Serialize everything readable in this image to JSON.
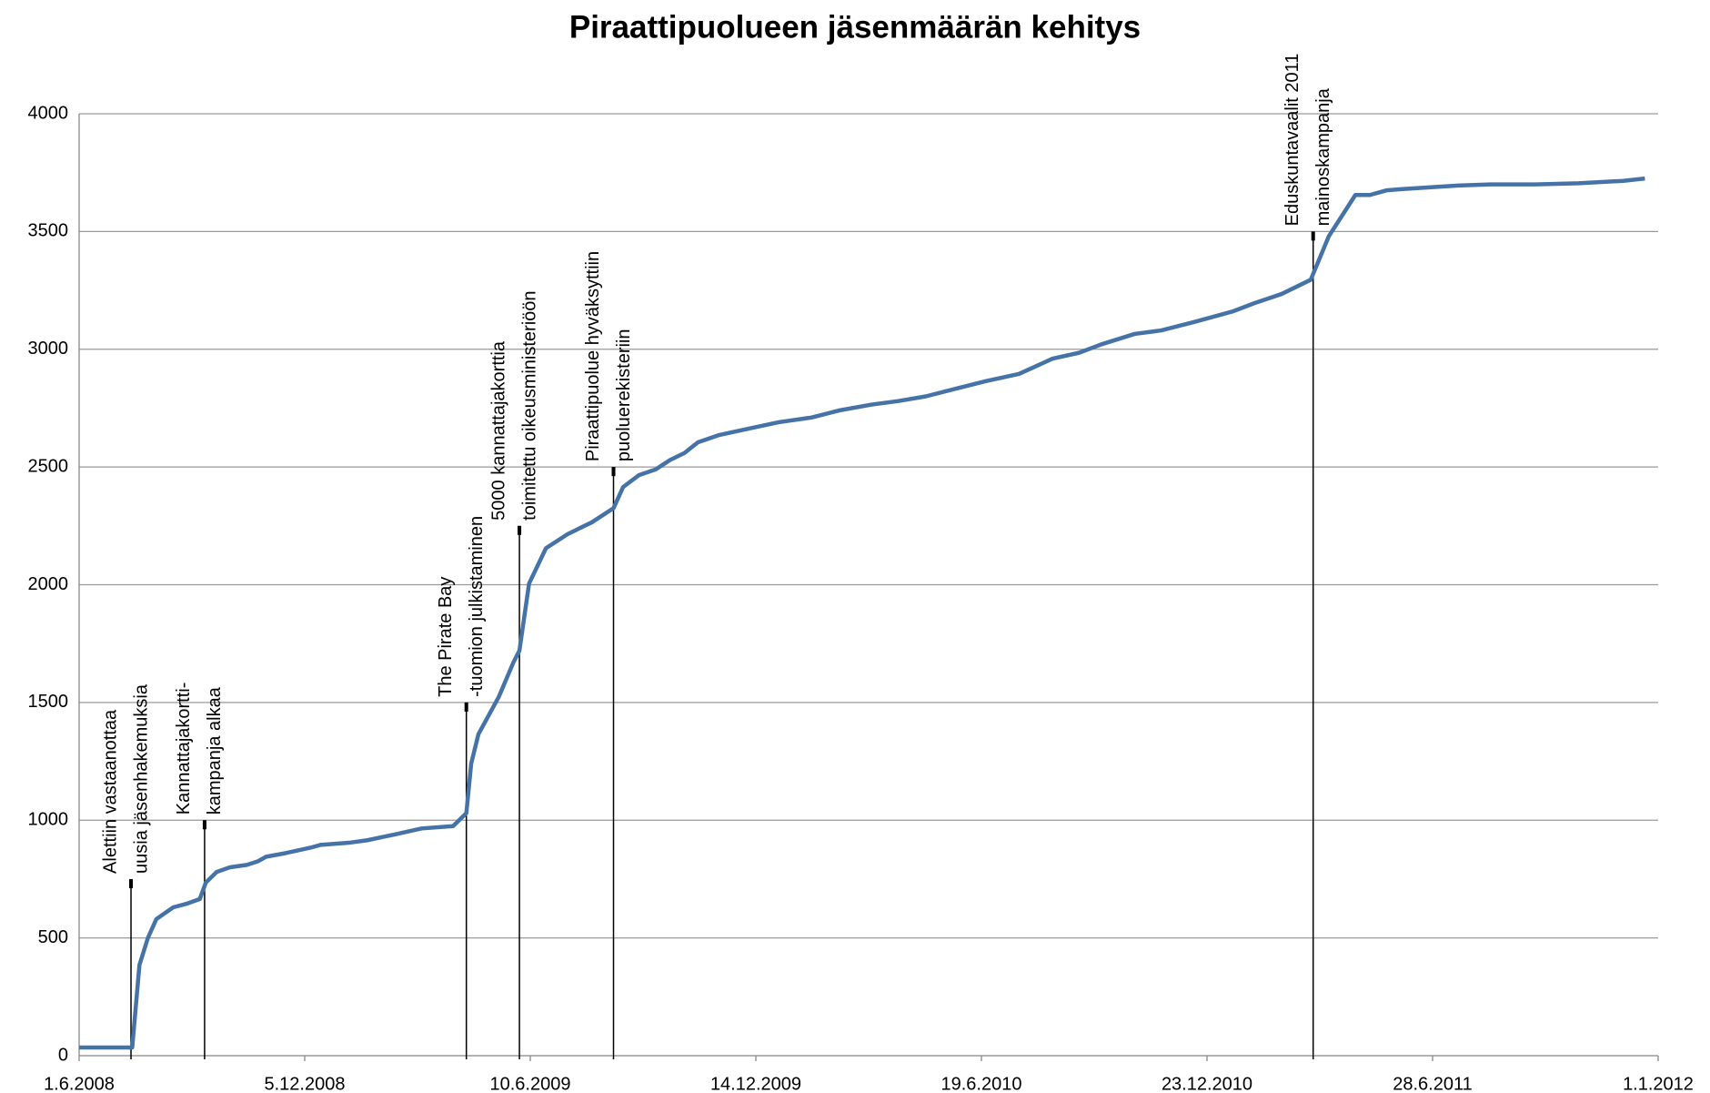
{
  "chart_data": {
    "type": "line",
    "title": "Piraattipuolueen jäsenmäärän kehitys",
    "x": [
      "2008-06-01",
      "2008-07-15",
      "2008-07-21",
      "2008-07-28",
      "2008-08-04",
      "2008-08-11",
      "2008-08-18",
      "2008-08-29",
      "2008-09-09",
      "2008-09-14",
      "2008-09-23",
      "2008-10-04",
      "2008-10-18",
      "2008-10-27",
      "2008-11-03",
      "2008-11-19",
      "2008-12-11",
      "2008-12-18",
      "2009-01-12",
      "2009-01-26",
      "2009-02-09",
      "2009-02-18",
      "2009-03-12",
      "2009-04-07",
      "2009-04-18",
      "2009-04-22",
      "2009-04-28",
      "2009-05-15",
      "2009-05-27",
      "2009-06-01",
      "2009-06-09",
      "2009-06-23",
      "2009-07-11",
      "2009-07-31",
      "2009-08-18",
      "2009-08-26",
      "2009-09-08",
      "2009-09-22",
      "2009-10-04",
      "2009-10-16",
      "2009-10-27",
      "2009-11-13",
      "2009-12-10",
      "2010-01-02",
      "2010-01-29",
      "2010-02-21",
      "2010-03-20",
      "2010-04-11",
      "2010-05-04",
      "2010-05-27",
      "2010-06-23",
      "2010-07-20",
      "2010-08-17",
      "2010-09-08",
      "2010-09-26",
      "2010-10-24",
      "2010-11-15",
      "2010-12-12",
      "2011-01-13",
      "2011-01-31",
      "2011-02-23",
      "2011-03-19",
      "2011-04-03",
      "2011-04-25",
      "2011-05-07",
      "2011-05-21",
      "2011-06-03",
      "2011-07-19",
      "2011-08-15",
      "2011-09-21",
      "2011-10-27",
      "2011-12-03",
      "2011-12-21"
    ],
    "series": [
      {
        "color": "#4573a7",
        "values": [
          35,
          35,
          385,
          500,
          580,
          605,
          630,
          645,
          665,
          735,
          780,
          800,
          810,
          825,
          845,
          860,
          885,
          895,
          905,
          915,
          930,
          940,
          965,
          975,
          1030,
          1240,
          1365,
          1525,
          1670,
          1720,
          2005,
          2155,
          2215,
          2265,
          2325,
          2415,
          2465,
          2490,
          2530,
          2560,
          2605,
          2635,
          2665,
          2690,
          2710,
          2740,
          2765,
          2780,
          2800,
          2830,
          2865,
          2895,
          2960,
          2985,
          3020,
          3065,
          3080,
          3115,
          3160,
          3195,
          3235,
          3295,
          3480,
          3655,
          3655,
          3675,
          3680,
          3695,
          3700,
          3700,
          3705,
          3715,
          3725
        ]
      }
    ],
    "xlim": [
      "2008-06-01",
      "2012-01-01"
    ],
    "xticks": [
      {
        "value": "2008-06-01",
        "label": "1.6.2008"
      },
      {
        "value": "2008-12-05",
        "label": "5.12.2008"
      },
      {
        "value": "2009-06-10",
        "label": "10.6.2009"
      },
      {
        "value": "2009-12-14",
        "label": "14.12.2009"
      },
      {
        "value": "2010-06-19",
        "label": "19.6.2010"
      },
      {
        "value": "2010-12-23",
        "label": "23.12.2010"
      },
      {
        "value": "2011-06-28",
        "label": "28.6.2011"
      },
      {
        "value": "2012-01-01",
        "label": "1.1.2012"
      }
    ],
    "ylim": [
      0,
      4000
    ],
    "yticks": [
      0,
      500,
      1000,
      1500,
      2000,
      2500,
      3000,
      3500,
      4000
    ],
    "grid": true,
    "annotations": [
      {
        "x": "2008-07-14",
        "y": 750,
        "text": [
          "Alettiin vastaanottaa",
          "uusia jäsenhakemuksia"
        ]
      },
      {
        "x": "2008-09-13",
        "y": 1000,
        "text": [
          "Kannattajakortti-",
          "kampanja alkaa"
        ]
      },
      {
        "x": "2009-04-18",
        "y": 1500,
        "text": [
          "The Pirate Bay",
          "-tuomion julkistaminen"
        ]
      },
      {
        "x": "2009-06-01",
        "y": 2250,
        "text": [
          "5000 kannattajakorttia",
          "toimitettu oikeusministeriöön"
        ]
      },
      {
        "x": "2009-08-18",
        "y": 2500,
        "text": [
          "Piraattipuolue hyväksyttiin",
          "puoluerekisteriin"
        ]
      },
      {
        "x": "2011-03-21",
        "y": 3500,
        "text": [
          "Eduskuntavaalit 2011",
          "mainoskampanja"
        ]
      }
    ]
  }
}
